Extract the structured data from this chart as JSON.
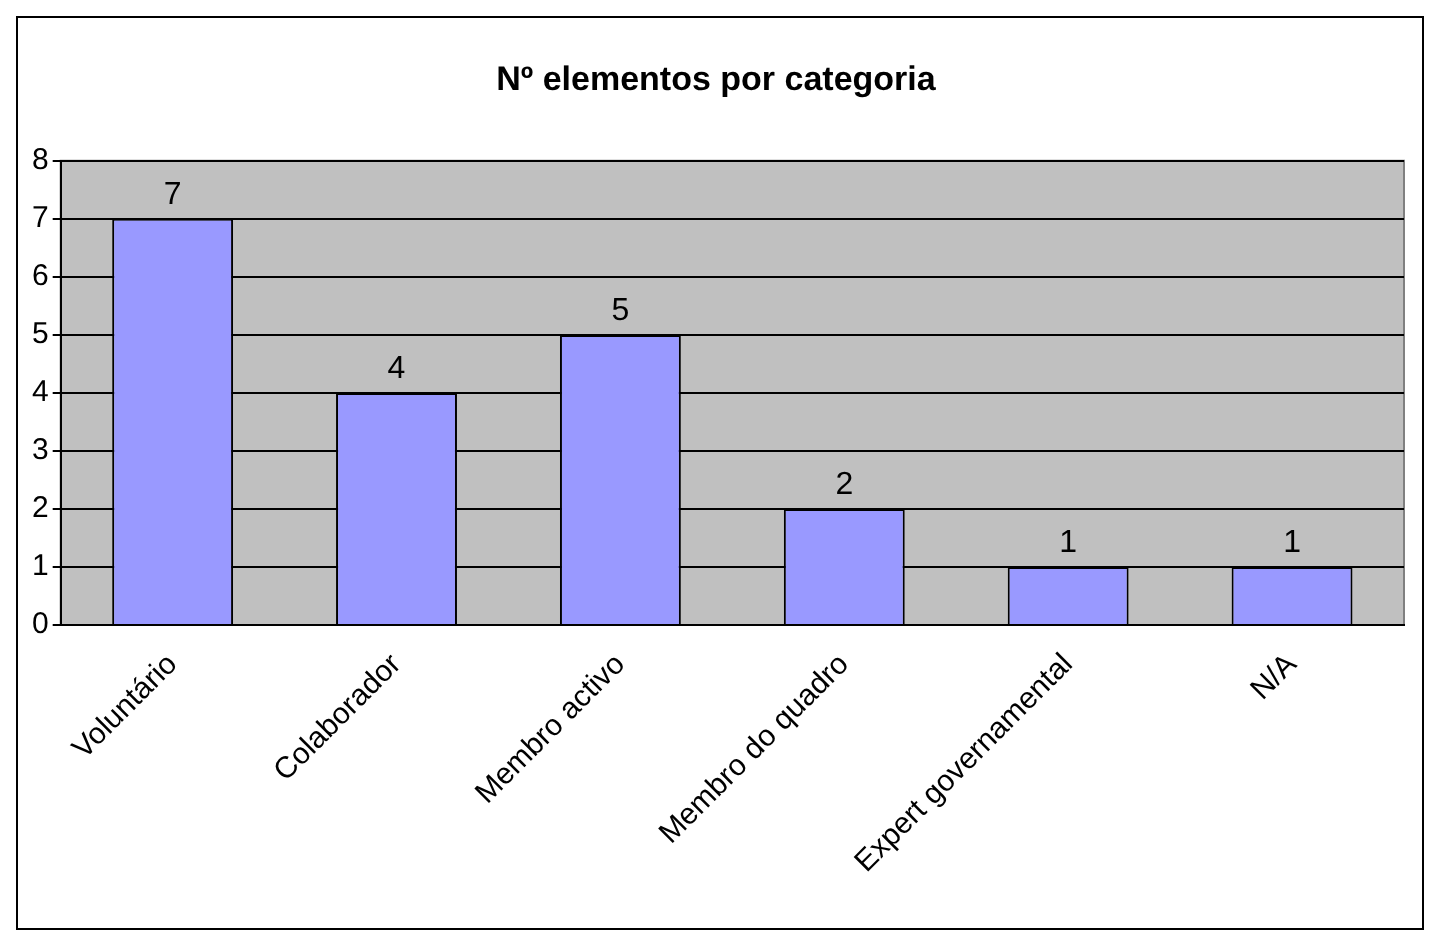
{
  "chart_data": {
    "type": "bar",
    "title": "Nº elementos por categoria",
    "categories": [
      "Voluntário",
      "Colaborador",
      "Membro activo",
      "Membro do quadro",
      "Expert governamental",
      "N/A"
    ],
    "values": [
      7,
      4,
      5,
      2,
      1,
      1
    ],
    "color": "#9999ff",
    "ylim": [
      0,
      8
    ],
    "yticks": [
      0,
      1,
      2,
      3,
      4,
      5,
      6,
      7,
      8
    ],
    "grid": "y",
    "data_labels": true,
    "legend": false
  }
}
